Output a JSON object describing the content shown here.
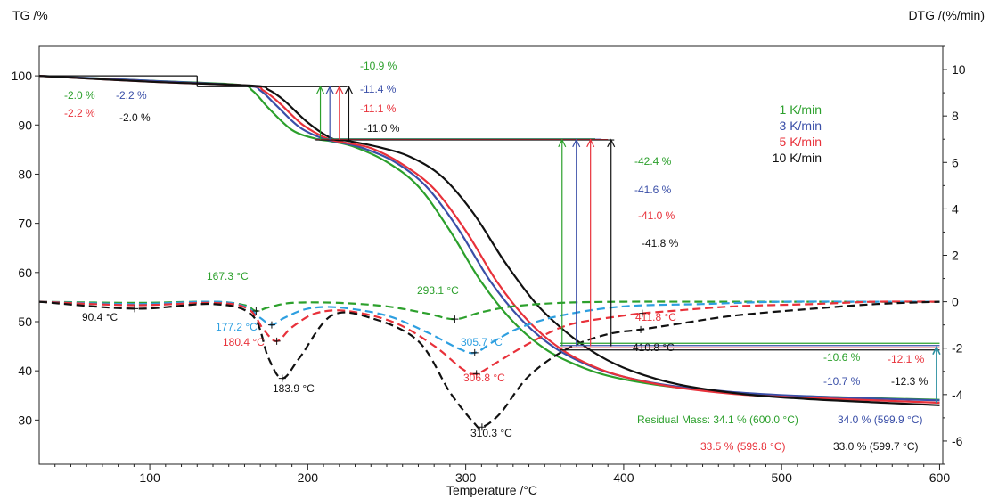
{
  "chart_data": {
    "type": "line",
    "xlabel": "Temperature /°C",
    "ylabel_left": "TG /%",
    "ylabel_right": "DTG /(%/min)",
    "xlim": [
      30,
      602
    ],
    "ylim_left": [
      21,
      106
    ],
    "ylim_right": [
      -7,
      11
    ],
    "x_ticks": [
      100,
      200,
      300,
      400,
      500,
      600
    ],
    "y_ticks_left": [
      30,
      40,
      50,
      60,
      70,
      80,
      90,
      100
    ],
    "y_ticks_right": [
      -6,
      -4,
      -2,
      0,
      2,
      4,
      6,
      8,
      10
    ],
    "legend": [
      {
        "label": "1 K/min",
        "color": "#2ca02c"
      },
      {
        "label": "3 K/min",
        "color": "#3a4fa8"
      },
      {
        "label": "5 K/min",
        "color": "#e8313a"
      },
      {
        "label": "10 K/min",
        "color": "#111111"
      }
    ],
    "tg_series": [
      {
        "name": "1 K/min",
        "color": "#2ca02c",
        "x": [
          30,
          100,
          155,
          165,
          175,
          190,
          205,
          215,
          230,
          250,
          270,
          290,
          310,
          330,
          350,
          370,
          390,
          420,
          460,
          500,
          550,
          600
        ],
        "y": [
          100,
          99.0,
          98.2,
          97.0,
          93.5,
          89.0,
          87.2,
          86.7,
          85.5,
          82.5,
          77.5,
          68.5,
          58.0,
          50.0,
          44.5,
          41.2,
          39.0,
          37.2,
          35.8,
          35.0,
          34.5,
          34.1
        ]
      },
      {
        "name": "3 K/min",
        "color": "#3a4fa8",
        "x": [
          30,
          100,
          160,
          170,
          180,
          195,
          210,
          220,
          235,
          255,
          275,
          295,
          315,
          335,
          355,
          375,
          395,
          425,
          465,
          505,
          555,
          600
        ],
        "y": [
          100,
          99.0,
          98.0,
          97.0,
          94.0,
          89.5,
          87.2,
          86.5,
          85.3,
          82.5,
          77.5,
          69.0,
          58.5,
          50.5,
          45.0,
          41.5,
          39.2,
          37.2,
          35.8,
          35.0,
          34.4,
          34.0
        ]
      },
      {
        "name": "5 K/min",
        "color": "#e8313a",
        "x": [
          30,
          100,
          162,
          172,
          182,
          197,
          212,
          222,
          240,
          260,
          280,
          300,
          320,
          340,
          360,
          380,
          400,
          430,
          470,
          510,
          560,
          600
        ],
        "y": [
          100,
          98.8,
          98.0,
          97.0,
          94.5,
          90.0,
          87.3,
          86.5,
          85.3,
          82.0,
          77.0,
          68.5,
          58.0,
          50.0,
          44.5,
          41.0,
          38.8,
          36.8,
          35.3,
          34.6,
          34.0,
          33.5
        ]
      },
      {
        "name": "10 K/min",
        "color": "#111111",
        "x": [
          30,
          100,
          165,
          175,
          185,
          200,
          215,
          225,
          245,
          265,
          285,
          305,
          325,
          345,
          365,
          385,
          405,
          435,
          475,
          515,
          565,
          600
        ],
        "y": [
          100,
          98.8,
          98.0,
          97.2,
          95.0,
          90.5,
          87.3,
          86.8,
          85.5,
          83.5,
          79.5,
          72.0,
          62.0,
          53.5,
          47.5,
          43.0,
          40.0,
          37.2,
          35.3,
          34.3,
          33.5,
          33.0
        ]
      }
    ],
    "dtg_series": [
      {
        "name": "1 K/min",
        "color": "#2ca02c",
        "x": [
          30,
          90,
          140,
          160,
          167.3,
          175,
          190,
          220,
          250,
          275,
          293.1,
          310,
          330,
          360,
          400,
          450,
          500,
          550,
          600
        ],
        "y": [
          0,
          -0.05,
          0,
          -0.15,
          -0.4,
          -0.25,
          -0.05,
          -0.05,
          -0.2,
          -0.5,
          -0.75,
          -0.45,
          -0.2,
          -0.05,
          0,
          0,
          0,
          0,
          0
        ]
      },
      {
        "name": "3 K/min",
        "color": "#2e9fe0",
        "x": [
          30,
          90,
          140,
          160,
          170,
          177.2,
          185,
          200,
          220,
          250,
          275,
          295,
          305.7,
          318,
          335,
          360,
          400,
          450,
          500,
          550,
          600
        ],
        "y": [
          0,
          -0.1,
          0,
          -0.2,
          -0.7,
          -1.0,
          -0.7,
          -0.3,
          -0.25,
          -0.6,
          -1.3,
          -2.0,
          -2.2,
          -1.7,
          -1.1,
          -0.6,
          -0.2,
          -0.1,
          0,
          0,
          0
        ]
      },
      {
        "name": "5 K/min",
        "color": "#e8313a",
        "x": [
          30,
          90,
          140,
          162,
          172,
          180.4,
          190,
          205,
          225,
          255,
          280,
          298,
          306.8,
          320,
          340,
          365,
          400,
          411.8,
          430,
          470,
          520,
          560,
          600
        ],
        "y": [
          0,
          -0.15,
          -0.05,
          -0.3,
          -1.2,
          -1.7,
          -1.1,
          -0.5,
          -0.4,
          -0.9,
          -1.9,
          -2.9,
          -3.1,
          -2.6,
          -1.8,
          -1.0,
          -0.6,
          -0.5,
          -0.4,
          -0.2,
          -0.1,
          0,
          0
        ]
      },
      {
        "name": "10 K/min",
        "color": "#111111",
        "x": [
          30,
          90.4,
          140,
          165,
          175,
          183.9,
          195,
          215,
          240,
          270,
          290,
          305,
          310.3,
          322,
          340,
          365,
          390,
          410.8,
          430,
          470,
          520,
          560,
          600
        ],
        "y": [
          0,
          -0.3,
          -0.1,
          -0.6,
          -2.4,
          -3.3,
          -2.4,
          -0.6,
          -0.7,
          -1.7,
          -3.9,
          -5.2,
          -5.4,
          -4.8,
          -3.2,
          -2.0,
          -1.4,
          -1.2,
          -1.0,
          -0.6,
          -0.3,
          -0.1,
          0
        ]
      }
    ],
    "peaks": [
      {
        "label": "167.3 °C",
        "x": 167.3,
        "y": -0.4,
        "color": "#2ca02c"
      },
      {
        "label": "177.2 °C",
        "x": 177.2,
        "y": -1.0,
        "color": "#2e9fe0"
      },
      {
        "label": "180.4 °C",
        "x": 180.4,
        "y": -1.7,
        "color": "#e8313a"
      },
      {
        "label": "183.9 °C",
        "x": 183.9,
        "y": -3.3,
        "color": "#111111"
      },
      {
        "label": "90.4 °C",
        "x": 90.4,
        "y": -0.3,
        "color": "#111111"
      },
      {
        "label": "293.1 °C",
        "x": 293.1,
        "y": -0.75,
        "color": "#2ca02c"
      },
      {
        "label": "305.7 °C",
        "x": 305.7,
        "y": -2.2,
        "color": "#2e9fe0"
      },
      {
        "label": "306.8 °C",
        "x": 306.8,
        "y": -3.1,
        "color": "#e8313a"
      },
      {
        "label": "310.3 °C",
        "x": 310.3,
        "y": -5.4,
        "color": "#111111"
      },
      {
        "label": "411.8 °C",
        "x": 411.8,
        "y": -0.5,
        "color": "#e8313a"
      },
      {
        "label": "410.8 °C",
        "x": 410.8,
        "y": -1.2,
        "color": "#111111"
      }
    ],
    "mass_steps": [
      {
        "label": "-2.0 %",
        "color": "#2ca02c",
        "step": 1
      },
      {
        "label": "-2.2 %",
        "color": "#3a4fa8",
        "step": 1
      },
      {
        "label": "-2.2 %",
        "color": "#e8313a",
        "step": 1
      },
      {
        "label": "-2.0 %",
        "color": "#111111",
        "step": 1
      },
      {
        "label": "-10.9 %",
        "color": "#2ca02c",
        "step": 2
      },
      {
        "label": "-11.4 %",
        "color": "#3a4fa8",
        "step": 2
      },
      {
        "label": "-11.1 %",
        "color": "#e8313a",
        "step": 2
      },
      {
        "label": "-11.0 %",
        "color": "#111111",
        "step": 2
      },
      {
        "label": "-42.4 %",
        "color": "#2ca02c",
        "step": 3
      },
      {
        "label": "-41.6 %",
        "color": "#3a4fa8",
        "step": 3
      },
      {
        "label": "-41.0 %",
        "color": "#e8313a",
        "step": 3
      },
      {
        "label": "-41.8 %",
        "color": "#111111",
        "step": 3
      },
      {
        "label": "-10.6 %",
        "color": "#2ca02c",
        "step": 4
      },
      {
        "label": "-10.7 %",
        "color": "#3a4fa8",
        "step": 4
      },
      {
        "label": "-12.1 %",
        "color": "#e8313a",
        "step": 4
      },
      {
        "label": "-12.3 %",
        "color": "#111111",
        "step": 4
      }
    ],
    "residual_mass": [
      {
        "label": "Residual Mass: 34.1 % (600.0 °C)",
        "color": "#2ca02c"
      },
      {
        "label": "34.0 % (599.9 °C)",
        "color": "#3a4fa8"
      },
      {
        "label": "33.5 % (599.8 °C)",
        "color": "#e8313a"
      },
      {
        "label": "33.0 % (599.7 °C)",
        "color": "#111111"
      }
    ]
  }
}
